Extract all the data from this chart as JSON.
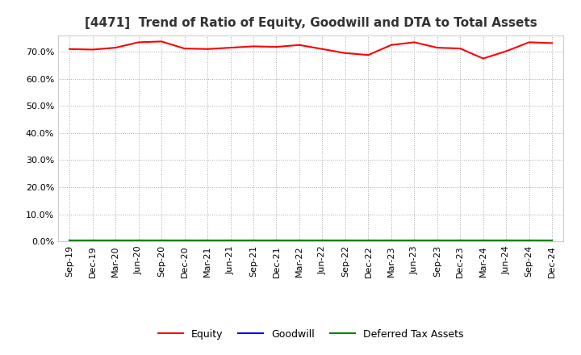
{
  "title": "[4471]  Trend of Ratio of Equity, Goodwill and DTA to Total Assets",
  "x_labels": [
    "Sep-19",
    "Dec-19",
    "Mar-20",
    "Jun-20",
    "Sep-20",
    "Dec-20",
    "Mar-21",
    "Jun-21",
    "Sep-21",
    "Dec-21",
    "Mar-22",
    "Jun-22",
    "Sep-22",
    "Dec-22",
    "Mar-23",
    "Jun-23",
    "Sep-23",
    "Dec-23",
    "Mar-24",
    "Jun-24",
    "Sep-24",
    "Dec-24"
  ],
  "equity": [
    71.0,
    70.8,
    71.5,
    73.5,
    73.8,
    71.2,
    71.0,
    71.5,
    72.0,
    71.8,
    72.5,
    71.0,
    69.5,
    68.8,
    72.5,
    73.5,
    71.5,
    71.2,
    67.5,
    70.2,
    73.5,
    73.2
  ],
  "goodwill": [
    0.3,
    0.3,
    0.3,
    0.3,
    0.3,
    0.3,
    0.3,
    0.3,
    0.3,
    0.3,
    0.3,
    0.3,
    0.3,
    0.3,
    0.3,
    0.3,
    0.3,
    0.3,
    0.3,
    0.3,
    0.3,
    0.3
  ],
  "dta": [
    0.5,
    0.5,
    0.5,
    0.5,
    0.5,
    0.5,
    0.5,
    0.5,
    0.5,
    0.5,
    0.5,
    0.5,
    0.5,
    0.5,
    0.5,
    0.5,
    0.5,
    0.5,
    0.5,
    0.5,
    0.5,
    0.5
  ],
  "equity_color": "#ff0000",
  "goodwill_color": "#0000ff",
  "dta_color": "#008000",
  "ylim": [
    0,
    76
  ],
  "yticks": [
    0.0,
    10.0,
    20.0,
    30.0,
    40.0,
    50.0,
    60.0,
    70.0
  ],
  "grid_color": "#aaaaaa",
  "background_color": "#ffffff",
  "title_fontsize": 11,
  "tick_fontsize": 8,
  "legend_labels": [
    "Equity",
    "Goodwill",
    "Deferred Tax Assets"
  ]
}
